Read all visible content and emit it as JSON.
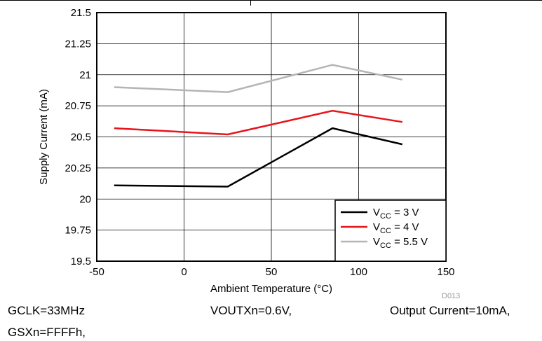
{
  "chart_data": {
    "type": "line",
    "code": "D013",
    "xlabel": "Ambient Temperature (°C)",
    "ylabel": "Supply Current (mA)",
    "xlim": [
      -50,
      150
    ],
    "ylim": [
      19.5,
      21.5
    ],
    "xticks": [
      "-50",
      "0",
      "50",
      "100",
      "150"
    ],
    "yticks": [
      "19.5",
      "19.75",
      "20",
      "20.25",
      "20.5",
      "20.75",
      "21",
      "21.25",
      "21.5"
    ],
    "grid": true,
    "legend_position": "bottom-right",
    "x": [
      -40,
      25,
      85,
      125
    ],
    "series": [
      {
        "name": "V_CC = 3 V",
        "name_main": "V",
        "name_sub": "CC",
        "name_rest": " = 3 V",
        "color": "#000000",
        "values": [
          20.11,
          20.1,
          20.57,
          20.44
        ]
      },
      {
        "name": "V_CC = 4 V",
        "name_main": "V",
        "name_sub": "CC",
        "name_rest": " = 4 V",
        "color": "#e8141b",
        "values": [
          20.57,
          20.52,
          20.71,
          20.62
        ]
      },
      {
        "name": "V_CC = 5.5 V",
        "name_main": "V",
        "name_sub": "CC",
        "name_rest": " = 5.5 V",
        "color": "#b4b4b4",
        "values": [
          20.9,
          20.86,
          21.08,
          20.96
        ]
      }
    ]
  },
  "captions": {
    "gclk": "GCLK=33MHz",
    "voutxn": "VOUTXn=0.6V,",
    "output_current": "Output Current=10mA,",
    "gsxn": "GSXn=FFFFh,"
  }
}
